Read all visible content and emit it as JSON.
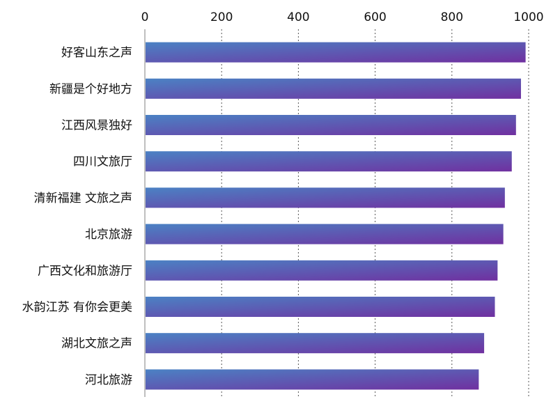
{
  "chart_data": {
    "type": "bar",
    "orientation": "horizontal",
    "categories": [
      "好客山东之声",
      "新疆是个好地方",
      "江西风景独好",
      "四川文旅厅",
      "清新福建 文旅之声",
      "北京旅游",
      "广西文化和旅游厅",
      "水韵江苏 有你会更美",
      "湖北文旅之声",
      "河北旅游"
    ],
    "values": [
      992,
      980,
      967,
      956,
      938,
      934,
      919,
      912,
      884,
      870
    ],
    "xlim": [
      0,
      1000
    ],
    "ticks": [
      0,
      200,
      400,
      600,
      800,
      1000
    ],
    "tick_labels": [
      "0",
      "200",
      "400",
      "600",
      "800",
      "1000"
    ],
    "xaxis_position": "top",
    "grid": "vertical-dotted",
    "title": "",
    "xlabel": "",
    "ylabel": "",
    "colors": {
      "bar_start": "#4b82c4",
      "bar_end": "#7030a0",
      "grid": "#555555",
      "axis": "#bfbfbf"
    }
  }
}
